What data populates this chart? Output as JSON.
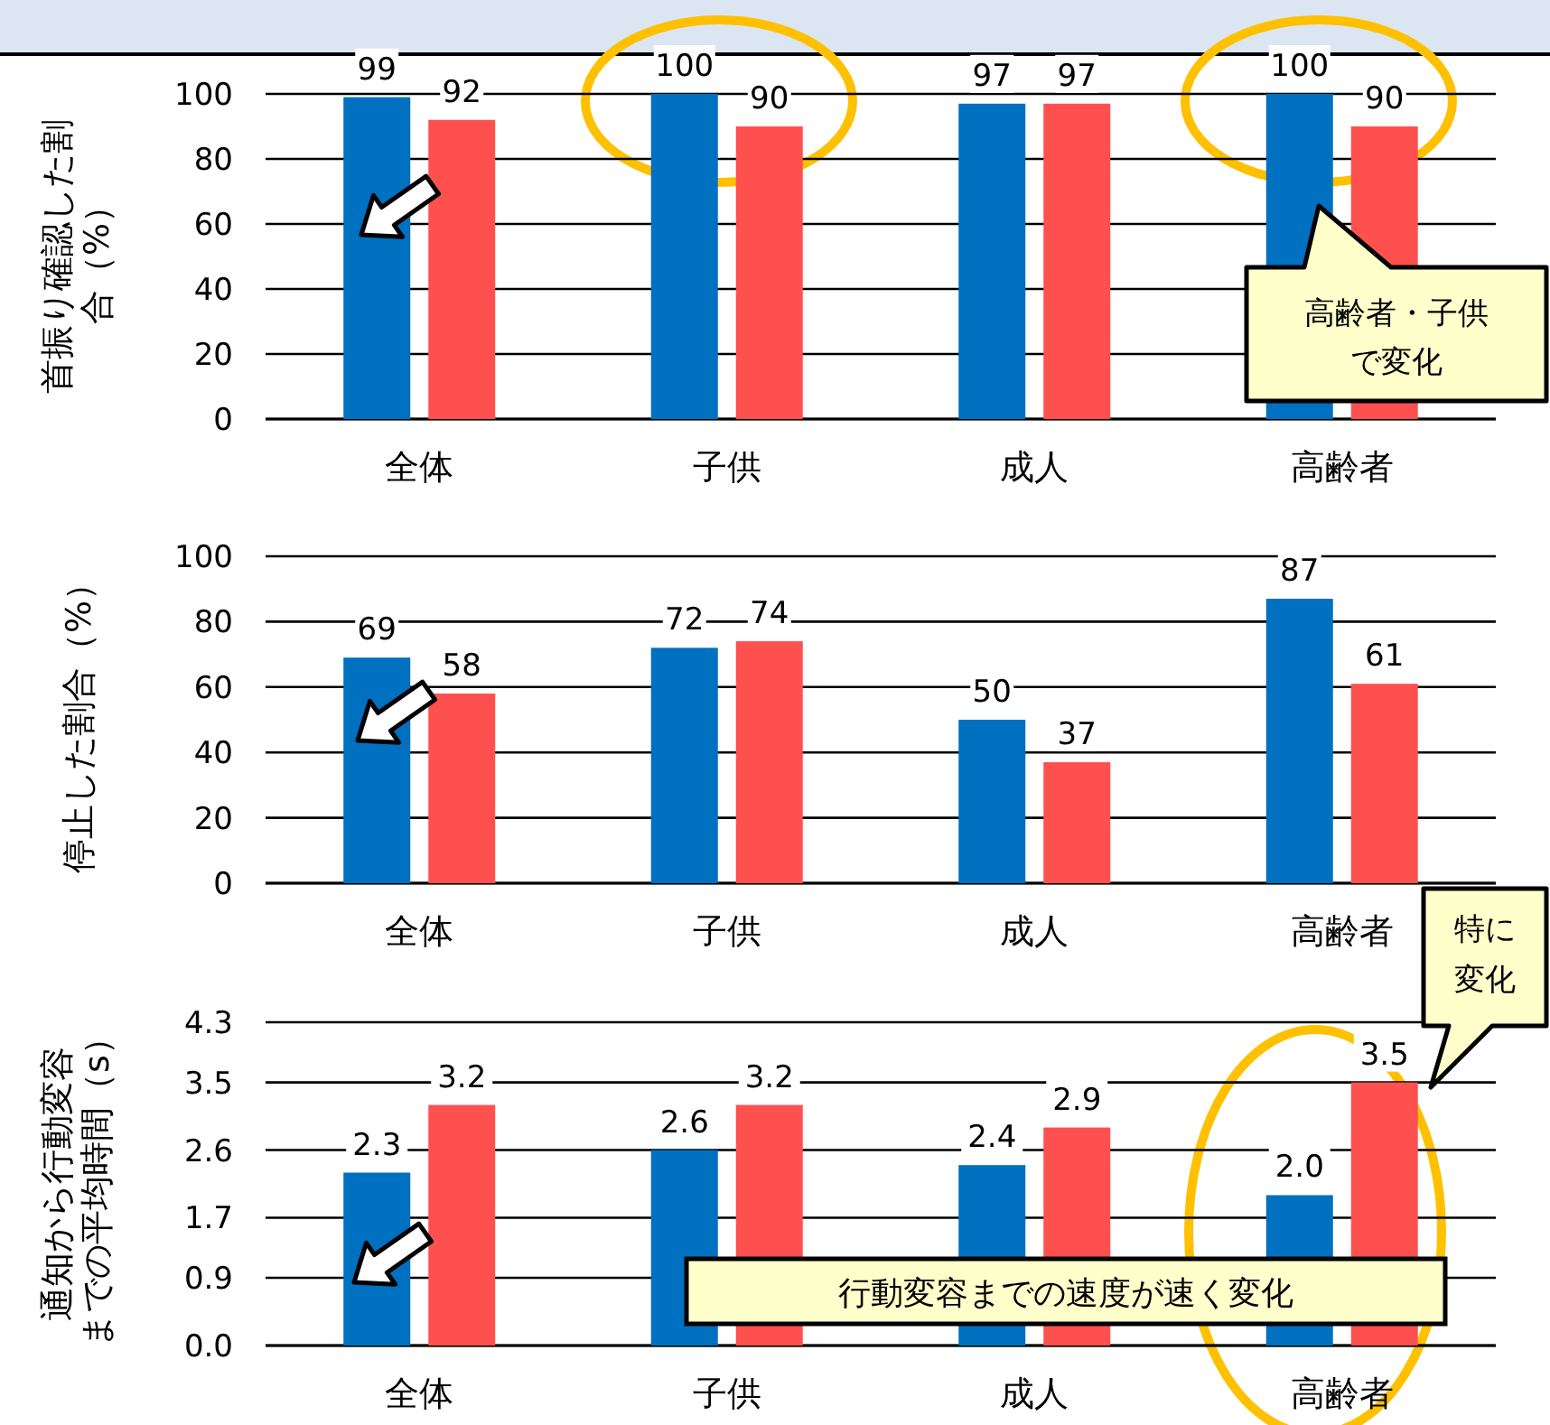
{
  "chart_data": [
    {
      "type": "bar",
      "ylabel": "首振り確認した割合（%）",
      "categories": [
        "全体",
        "子供",
        "成人",
        "高齢者"
      ],
      "series": [
        {
          "color": "#0070c0",
          "values": [
            99,
            100,
            97,
            100
          ]
        },
        {
          "color": "#ff5050",
          "values": [
            92,
            90,
            97,
            90
          ]
        }
      ],
      "ylim": [
        0,
        100
      ],
      "yticks": [
        0,
        20,
        40,
        60,
        80,
        100
      ],
      "grid": "y",
      "data_labels": true,
      "annotations": [
        "高齢者・子供で変化"
      ]
    },
    {
      "type": "bar",
      "ylabel": "停止した割合（%）",
      "categories": [
        "全体",
        "子供",
        "成人",
        "高齢者"
      ],
      "series": [
        {
          "color": "#0070c0",
          "values": [
            69,
            72,
            50,
            87
          ]
        },
        {
          "color": "#ff5050",
          "values": [
            58,
            74,
            37,
            61
          ]
        }
      ],
      "ylim": [
        0,
        100
      ],
      "yticks": [
        0,
        20,
        40,
        60,
        80,
        100
      ],
      "grid": "y",
      "data_labels": true
    },
    {
      "type": "bar",
      "ylabel": "通知から行動変容までの平均時間（s）",
      "categories": [
        "全体",
        "子供",
        "成人",
        "高齢者"
      ],
      "series": [
        {
          "color": "#0070c0",
          "values": [
            2.3,
            2.6,
            2.4,
            2.0
          ]
        },
        {
          "color": "#ff5050",
          "values": [
            3.2,
            3.2,
            2.9,
            3.5
          ]
        }
      ],
      "value_labels": [
        [
          "2.3",
          "2.6",
          "2.4",
          "2.0"
        ],
        [
          "3.2",
          "3.2",
          "2.9",
          "3.5"
        ]
      ],
      "ylim": [
        0,
        4.3
      ],
      "yticks": [
        {
          "value": 0,
          "label": "0.0"
        },
        0.9,
        1.7,
        2.6,
        3.5,
        4.3
      ],
      "grid": "y",
      "annotations": [
        "行動変容までの速度が速く変化",
        "特に変化"
      ]
    }
  ]
}
